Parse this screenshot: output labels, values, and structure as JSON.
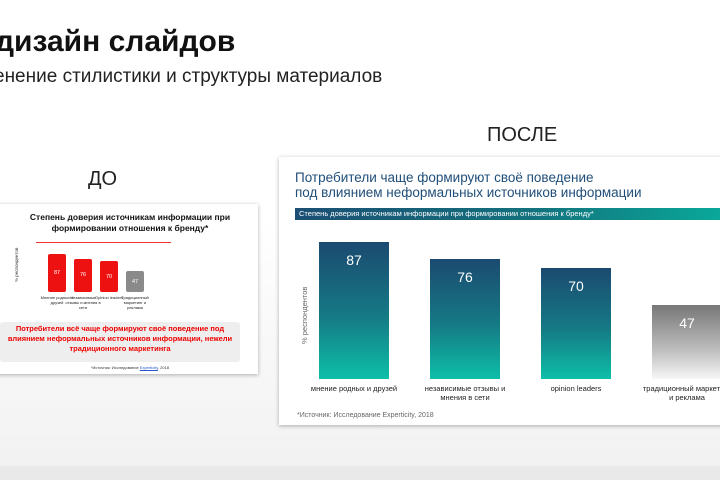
{
  "slide": {
    "heading": "дизайн слайдов",
    "subheading": "енение стилистики и структуры материалов",
    "label_before": "ДО",
    "label_after": "ПОСЛЕ"
  },
  "before": {
    "title": "Степень доверия источникам  информации при формировании отношения к бренду*",
    "ylabel": "% респондентов",
    "callout": "Потребители всё чаще формируют своё  поведение под влиянием неформальных  источников информации, нежели традиционного маркетинга",
    "source_prefix": "*Источник: Исследование ",
    "source_link": "Experticity",
    "source_suffix": ", 2018",
    "chart_data": {
      "type": "bar",
      "categories": [
        "Мнение родных и друзей",
        "Независимые отзывы и мнения в сети",
        "Opinion leaders",
        "Традиционный маркетинг и реклама"
      ],
      "values": [
        87,
        76,
        70,
        47
      ],
      "colors": [
        "#ee1111",
        "#ee1111",
        "#ee1111",
        "#8a8a8a"
      ],
      "title": "Степень доверия источникам  информации при формировании отношения к бренду*",
      "ylabel": "% респондентов",
      "ylim": [
        0,
        100
      ]
    }
  },
  "after": {
    "title_line1": "Потребители чаще формируют своё поведение",
    "title_line2": "под влиянием неформальных источников информации",
    "band": "Степень доверия источникам информации при формировании отношения к бренду*",
    "ylabel": "% респондентов",
    "source": "*Источник: Исследование Experticity, 2018",
    "chart_data": {
      "type": "bar",
      "categories": [
        "мнение родных и друзей",
        "независимые отзывы и мнения в сети",
        "opinion leaders",
        "традиционный маркетинг и реклама"
      ],
      "values": [
        87,
        76,
        70,
        47
      ],
      "colors": [
        "teal-gradient",
        "teal-gradient",
        "teal-gradient",
        "gray-gradient"
      ],
      "ylabel": "% респондентов",
      "ylim": [
        0,
        100
      ]
    }
  }
}
